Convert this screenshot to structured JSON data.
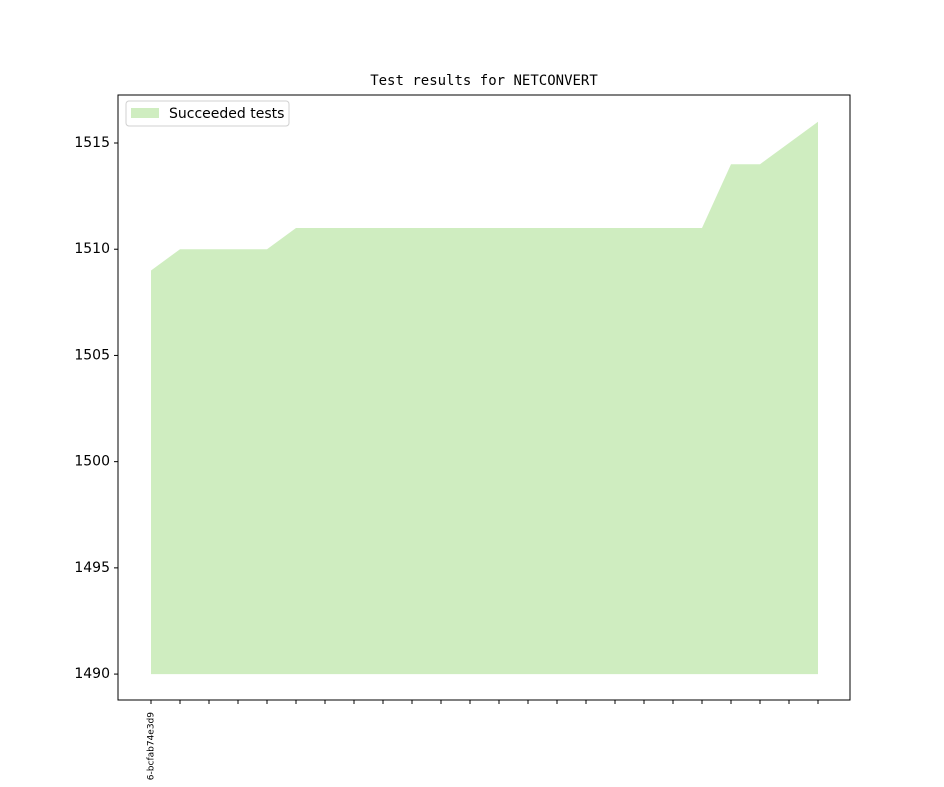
{
  "chart_data": {
    "type": "area",
    "title": "Test results for NETCONVERT",
    "categories": [
      "6-bcfab74e3d9",
      null,
      null,
      null,
      null,
      null,
      null,
      null,
      null,
      null,
      null,
      null,
      null,
      null,
      null,
      null,
      null,
      null,
      null,
      null,
      null,
      null,
      null,
      null
    ],
    "series": [
      {
        "name": "Succeeded tests",
        "color": "#cfedc0",
        "values": [
          1509,
          1510,
          1510,
          1510,
          1510,
          1511,
          1511,
          1511,
          1511,
          1511,
          1511,
          1511,
          1511,
          1511,
          1511,
          1511,
          1511,
          1511,
          1511,
          1511,
          1514,
          1514,
          1515,
          1516
        ]
      }
    ],
    "baseline": 1490,
    "ylim": [
      1488.78,
      1517.26
    ],
    "yticks": [
      1490,
      1495,
      1500,
      1505,
      1510,
      1515
    ],
    "grid": false,
    "legend": "upper-left"
  }
}
